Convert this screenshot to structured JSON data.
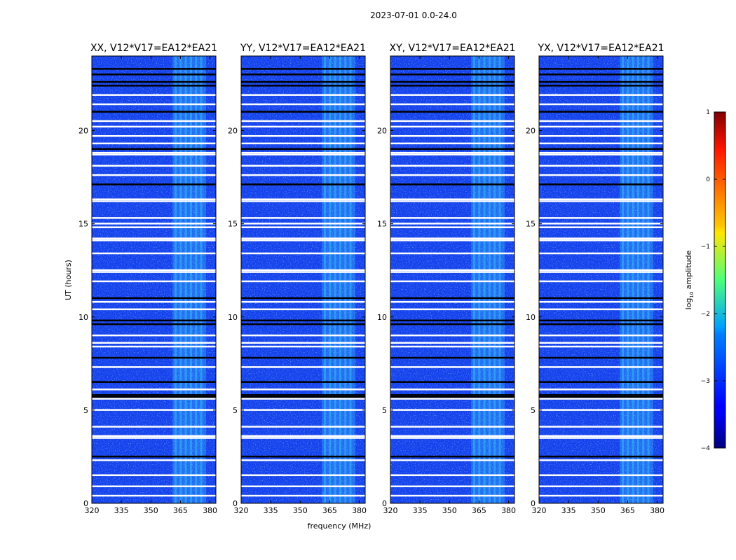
{
  "figure_title": "2023-07-01 0.0-24.0",
  "colors": {
    "background": "#ffffff",
    "low": "#0000c8",
    "mid": "#1e64ff",
    "high": "#40e0ff",
    "flag": "#ffffff",
    "gap": "#000000"
  },
  "chart_data": {
    "type": "heatmap",
    "suptitle": "2023-07-01 0.0-24.0",
    "xlabel": "frequency (MHz)",
    "ylabel": "UT (hours)",
    "xlim": [
      320,
      383
    ],
    "ylim": [
      0,
      24
    ],
    "xticks": [
      320,
      335,
      350,
      365,
      380
    ],
    "yticks": [
      0,
      5,
      10,
      15,
      20
    ],
    "panels": [
      {
        "title": "XX, V12*V17=EA12*EA21",
        "rfi_band_mhz": [
          361,
          378
        ]
      },
      {
        "title": "YY, V12*V17=EA12*EA21",
        "rfi_band_mhz": [
          361,
          378
        ]
      },
      {
        "title": "XY, V12*V17=EA12*EA21",
        "rfi_band_mhz": [
          361,
          378
        ]
      },
      {
        "title": "YX, V12*V17=EA12*EA21",
        "rfi_band_mhz": [
          361,
          378
        ]
      }
    ],
    "flagged_hours": [
      0.4,
      0.9,
      1.5,
      2.3,
      3.5,
      3.6,
      4.1,
      5.0,
      5.6,
      6.1,
      7.3,
      8.4,
      8.6,
      9.0,
      10.4,
      10.8,
      11.9,
      12.4,
      12.5,
      13.4,
      14.1,
      14.2,
      14.8,
      15.0,
      15.3,
      16.2,
      16.3,
      17.6,
      18.1,
      18.7,
      18.8,
      19.3,
      19.7,
      20.2,
      20.5,
      21.4,
      21.9
    ],
    "gap_hours": [
      2.5,
      5.7,
      5.8,
      6.5,
      7.8,
      9.6,
      9.8,
      11.0,
      17.1,
      19.0,
      21.0,
      22.4,
      22.6,
      23.0,
      23.3
    ],
    "colorbar": {
      "label_text": "log",
      "label_sub": "10",
      "label_rest": " amplitude",
      "ticks": [
        1,
        0,
        -1,
        -2,
        -3,
        -4
      ],
      "tick_labels": [
        "1",
        "0",
        "−1",
        "−2",
        "−3",
        "−4"
      ],
      "range": [
        -4,
        1
      ],
      "colormap": "jet"
    }
  }
}
